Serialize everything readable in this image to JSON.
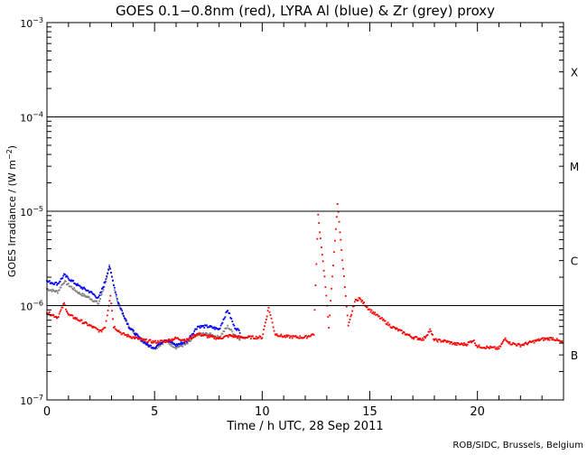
{
  "chart_data": {
    "type": "scatter",
    "title": "GOES 0.1−0.8nm (red), LYRA Al (blue) & Zr (grey) proxy",
    "xlabel": "Time / h UTC, 28 Sep 2011",
    "ylabel": "GOES Irradiance / (W m",
    "ylabel_sup": "−2",
    "ylabel_end": ")",
    "xlim": [
      0,
      24
    ],
    "ylim": [
      1e-07,
      0.001
    ],
    "yscale": "log",
    "xticks": [
      0,
      5,
      10,
      15,
      20
    ],
    "yticks": [
      {
        "base": "10",
        "exp": "−3",
        "v": 0.001
      },
      {
        "base": "10",
        "exp": "−4",
        "v": 0.0001
      },
      {
        "base": "10",
        "exp": "−5",
        "v": 1e-05
      },
      {
        "base": "10",
        "exp": "−6",
        "v": 1e-06
      },
      {
        "base": "10",
        "exp": "−7",
        "v": 1e-07
      }
    ],
    "flare_classes": [
      {
        "label": "X",
        "v": 0.0003
      },
      {
        "label": "M",
        "v": 3e-05
      },
      {
        "label": "C",
        "v": 3e-06
      },
      {
        "label": "B",
        "v": 3e-07
      }
    ],
    "class_lines": [
      0.0001,
      1e-05,
      1e-06
    ],
    "series": [
      {
        "name": "GOES 0.1-0.8nm",
        "color": "#ff0000",
        "x": [
          0,
          0.5,
          0.8,
          1,
          1.5,
          2.2,
          2.5,
          2.7,
          2.8,
          2.95,
          3.1,
          3.5,
          4,
          4.5,
          5,
          5.5,
          6,
          6.5,
          7,
          7.5,
          8,
          8.5,
          9,
          10,
          10.3,
          10.6,
          11,
          12,
          12.4,
          12.6,
          12.9,
          13.1,
          13.5,
          13.8,
          14,
          14.3,
          14.5,
          15,
          16,
          17,
          17.5,
          17.8,
          18,
          18.5,
          19,
          19.5,
          19.8,
          20,
          21,
          21.3,
          21.5,
          22,
          23,
          23.5,
          24
        ],
        "y": [
          8.5e-07,
          7.5e-07,
          1.05e-06,
          8e-07,
          7e-07,
          5.8e-07,
          5.3e-07,
          6e-07,
          8e-07,
          1.3e-06,
          6e-07,
          5e-07,
          4.6e-07,
          4.3e-07,
          4.1e-07,
          4.2e-07,
          4.5e-07,
          4.3e-07,
          5e-07,
          4.7e-07,
          4.5e-07,
          4.8e-07,
          4.6e-07,
          4.6e-07,
          9.5e-07,
          5e-07,
          4.7e-07,
          4.6e-07,
          5e-07,
          9e-06,
          2e-06,
          6e-07,
          1.2e-05,
          2e-06,
          6e-07,
          1.1e-06,
          1.2e-06,
          9e-07,
          6e-07,
          4.6e-07,
          4.4e-07,
          5.5e-07,
          4.3e-07,
          4.2e-07,
          3.9e-07,
          3.9e-07,
          4.3e-07,
          3.7e-07,
          3.5e-07,
          4.5e-07,
          4e-07,
          3.8e-07,
          4.4e-07,
          4.5e-07,
          4e-07
        ]
      },
      {
        "name": "LYRA Al proxy",
        "color": "#0000ff",
        "x": [
          0,
          0.5,
          0.8,
          1.5,
          2,
          2.4,
          2.7,
          2.9,
          3.3,
          3.8,
          4.3,
          4.7,
          5,
          5.5,
          6,
          6.5,
          7,
          7.5,
          8,
          8.4,
          8.7,
          9
        ],
        "y": [
          1.8e-06,
          1.7e-06,
          2.1e-06,
          1.6e-06,
          1.4e-06,
          1.2e-06,
          1.8e-06,
          2.6e-06,
          1.1e-06,
          6e-07,
          4.5e-07,
          3.8e-07,
          3.6e-07,
          4.4e-07,
          3.8e-07,
          4.2e-07,
          6e-07,
          6e-07,
          5.6e-07,
          9e-07,
          6e-07,
          5.2e-07
        ]
      },
      {
        "name": "LYRA Zr proxy",
        "color": "#808080",
        "x": [
          0,
          0.5,
          0.8,
          1.5,
          2,
          2.4,
          2.7,
          2.9,
          3.3,
          3.8,
          4.3,
          4.7,
          5,
          5.5,
          6,
          6.5,
          7,
          7.5,
          8,
          8.4,
          8.7,
          9
        ],
        "y": [
          1.5e-06,
          1.4e-06,
          1.8e-06,
          1.35e-06,
          1.2e-06,
          1.05e-06,
          1.7e-06,
          2.6e-06,
          1.05e-06,
          6e-07,
          4.5e-07,
          3.8e-07,
          3.5e-07,
          4.2e-07,
          3.6e-07,
          3.9e-07,
          5e-07,
          5e-07,
          4.6e-07,
          6e-07,
          5e-07,
          4.4e-07
        ]
      }
    ]
  },
  "footer": "ROB/SIDC, Brussels, Belgium"
}
